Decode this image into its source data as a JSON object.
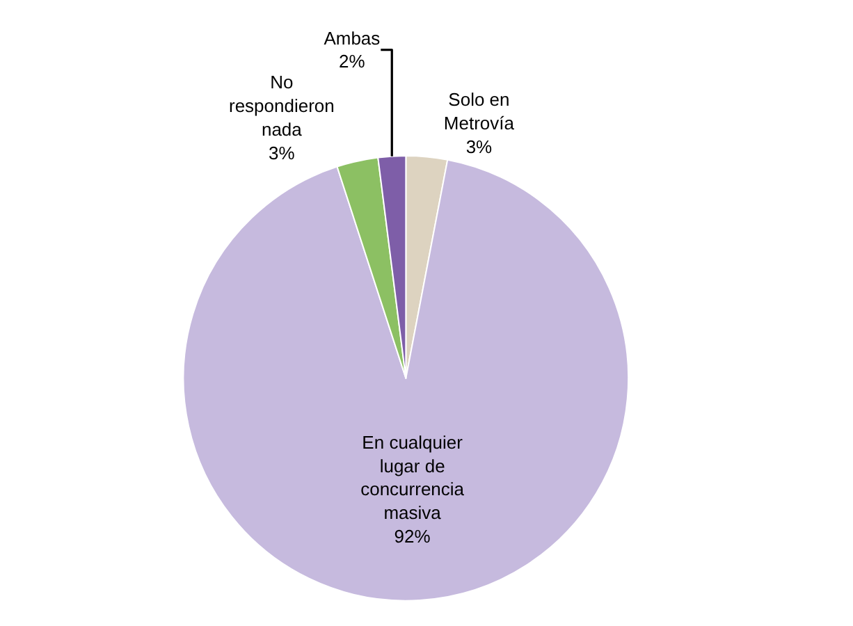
{
  "chart_data": {
    "type": "pie",
    "categories": [
      "Solo en Metrovía",
      "En cualquier lugar de concurrencia masiva",
      "No respondieron nada",
      "Ambas"
    ],
    "values": [
      3,
      92,
      3,
      2
    ],
    "value_labels": [
      "3%",
      "92%",
      "3%",
      "2%"
    ],
    "colors": [
      "#ddd3c0",
      "#c6bade",
      "#8cc063",
      "#7e5ea8"
    ]
  }
}
